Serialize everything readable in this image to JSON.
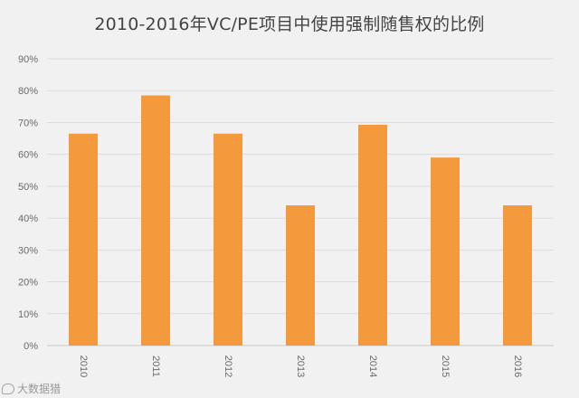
{
  "chart_data": {
    "type": "bar",
    "title": "2010-2016年VC/PE项目中使用强制随售权的比例",
    "xlabel": "",
    "ylabel": "",
    "categories": [
      "2010",
      "2011",
      "2012",
      "2013",
      "2014",
      "2015",
      "2016"
    ],
    "values": [
      66.5,
      78.5,
      66.5,
      44,
      69.3,
      59,
      44
    ],
    "value_format": "percent",
    "ylim": [
      0,
      90
    ],
    "yticks": [
      "0%",
      "10%",
      "20%",
      "30%",
      "40%",
      "50%",
      "60%",
      "70%",
      "80%",
      "90%"
    ],
    "grid": true,
    "legend": "none",
    "colors": {
      "bar": "#f59a3c",
      "grid": "#dcdcdc",
      "axis": "#c8c8c8",
      "background": "#f1f1f1"
    }
  },
  "watermark": {
    "icon": "chat-bubble-icon",
    "text": "大数据猎"
  }
}
